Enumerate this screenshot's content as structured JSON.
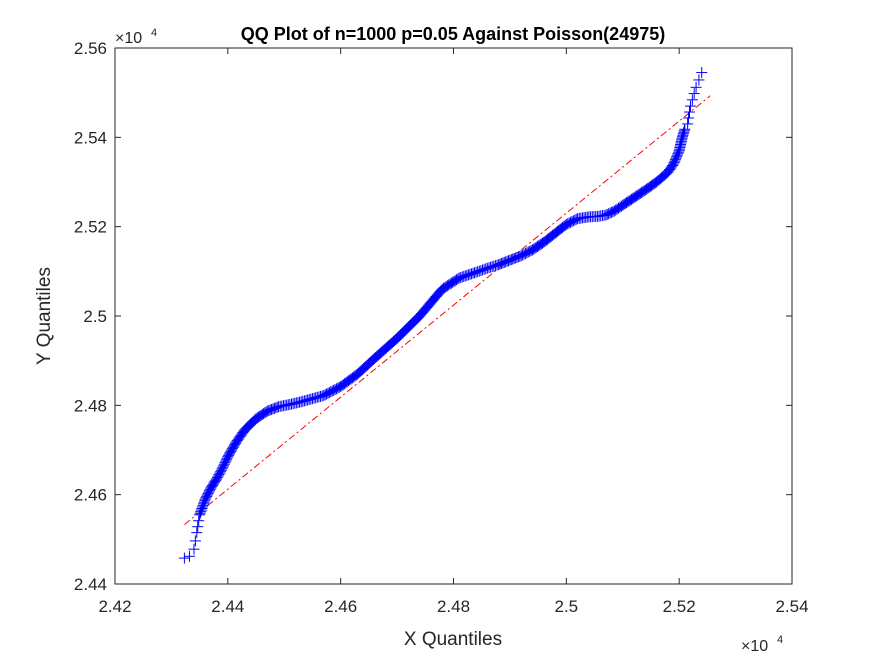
{
  "chart_data": {
    "type": "scatter",
    "title": "QQ Plot of n=1000 p=0.05 Against Poisson(24975)",
    "xlabel": "X Quantiles",
    "ylabel": "Y Quantiles",
    "x_exponent_label": "×10",
    "x_exponent_power": "4",
    "y_exponent_label": "×10",
    "y_exponent_power": "4",
    "xlim": [
      2.42,
      2.54
    ],
    "ylim": [
      2.44,
      2.56
    ],
    "x_ticks": [
      2.42,
      2.44,
      2.46,
      2.48,
      2.5,
      2.52,
      2.54
    ],
    "x_tick_labels": [
      "2.42",
      "2.44",
      "2.46",
      "2.48",
      "2.5",
      "2.52",
      "2.54"
    ],
    "y_ticks": [
      2.44,
      2.46,
      2.48,
      2.5,
      2.52,
      2.54,
      2.56
    ],
    "y_tick_labels": [
      "2.44",
      "2.46",
      "2.48",
      "2.5",
      "2.52",
      "2.54",
      "2.56"
    ],
    "grid": false,
    "marker": "+",
    "marker_color": "#0000ff",
    "reference_line": {
      "style": "dash-dot",
      "color": "#ff0000",
      "x": [
        2.4323,
        2.5255
      ],
      "y": [
        2.4533,
        2.5493
      ]
    },
    "quantile_curve": {
      "x": [
        2.4323,
        2.4332,
        2.434,
        2.4345,
        2.435,
        2.436,
        2.437,
        2.438,
        2.439,
        2.44,
        2.4415,
        2.443,
        2.445,
        2.447,
        2.449,
        2.451,
        2.453,
        2.455,
        2.457,
        2.46,
        2.463,
        2.466,
        2.47,
        2.474,
        2.478,
        2.481,
        2.484,
        2.486,
        2.488,
        2.49,
        2.492,
        2.494,
        2.496,
        2.498,
        2.5,
        2.502,
        2.504,
        2.5055,
        2.507,
        2.5085,
        2.51,
        2.512,
        2.514,
        2.516,
        2.518,
        2.519,
        2.52,
        2.5205,
        2.521,
        2.5215,
        2.522,
        2.523,
        2.524
      ],
      "y": [
        2.4458,
        2.4462,
        2.4478,
        2.4515,
        2.4555,
        2.459,
        2.4615,
        2.4635,
        2.4658,
        2.4685,
        2.4718,
        2.4745,
        2.477,
        2.4787,
        2.4797,
        2.4802,
        2.4808,
        2.4815,
        2.4822,
        2.4842,
        2.487,
        2.4905,
        2.495,
        2.5,
        2.506,
        2.5085,
        2.5098,
        2.5107,
        2.5115,
        2.5125,
        2.5135,
        2.5148,
        2.5165,
        2.5185,
        2.5205,
        2.5218,
        2.5222,
        2.5223,
        2.5226,
        2.5235,
        2.5248,
        2.5265,
        2.5282,
        2.53,
        2.5322,
        2.534,
        2.537,
        2.5398,
        2.5418,
        2.543,
        2.547,
        2.5512,
        2.5545
      ]
    }
  }
}
